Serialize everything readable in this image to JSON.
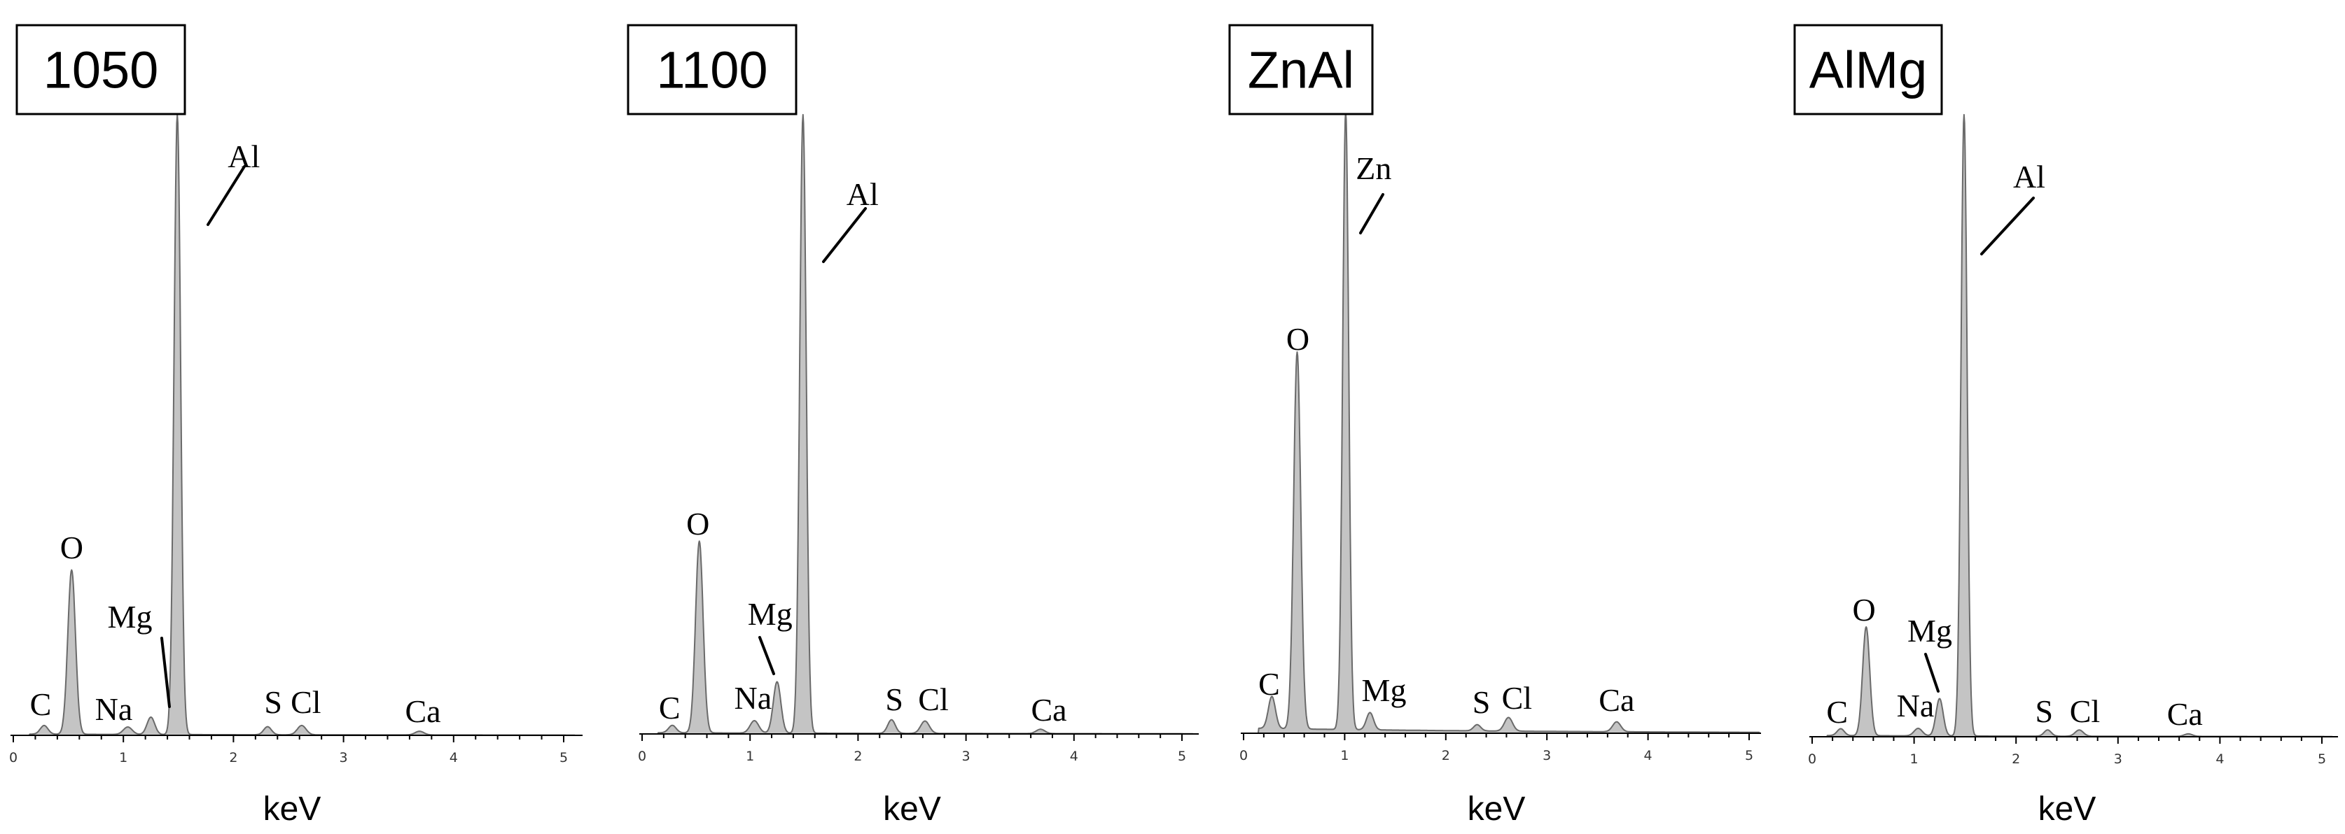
{
  "chart_data": [
    {
      "type": "area",
      "title": "1050",
      "xlabel": "keV",
      "ylabel": "",
      "xlim": [
        0,
        5.1
      ],
      "x_ticks": [
        "0",
        "1",
        "2",
        "3",
        "4",
        "5"
      ],
      "fill_color": "#c4c4c4",
      "line_color": "#6a6a6a",
      "peaks": [
        {
          "label": "C",
          "energy": 0.28,
          "height": 0.014
        },
        {
          "label": "O",
          "energy": 0.53,
          "height": 0.265
        },
        {
          "label": "Na",
          "energy": 1.04,
          "height": 0.012
        },
        {
          "label": "Mg",
          "energy": 1.25,
          "height": 0.028
        },
        {
          "label": "Al",
          "energy": 1.49,
          "height": 1.0
        },
        {
          "label": "S",
          "energy": 2.31,
          "height": 0.013
        },
        {
          "label": "Cl",
          "energy": 2.62,
          "height": 0.015
        },
        {
          "label": "Ca",
          "energy": 3.69,
          "height": 0.006
        }
      ]
    },
    {
      "type": "area",
      "title": "1100",
      "xlabel": "keV",
      "ylabel": "",
      "xlim": [
        0,
        5.1
      ],
      "x_ticks": [
        "0",
        "1",
        "2",
        "3",
        "4",
        "5"
      ],
      "fill_color": "#c4c4c4",
      "line_color": "#6a6a6a",
      "peaks": [
        {
          "label": "C",
          "energy": 0.28,
          "height": 0.012
        },
        {
          "label": "O",
          "energy": 0.53,
          "height": 0.31
        },
        {
          "label": "Na",
          "energy": 1.04,
          "height": 0.02
        },
        {
          "label": "Mg",
          "energy": 1.25,
          "height": 0.083
        },
        {
          "label": "Al",
          "energy": 1.49,
          "height": 1.0
        },
        {
          "label": "S",
          "energy": 2.31,
          "height": 0.022
        },
        {
          "label": "Cl",
          "energy": 2.62,
          "height": 0.02
        },
        {
          "label": "Ca",
          "energy": 3.69,
          "height": 0.007
        }
      ]
    },
    {
      "type": "area",
      "title": "ZnAl",
      "xlabel": "keV",
      "ylabel": "",
      "xlim": [
        0,
        5.1
      ],
      "x_ticks": [
        "0",
        "1",
        "2",
        "3",
        "4",
        "5"
      ],
      "fill_color": "#c4c4c4",
      "line_color": "#6a6a6a",
      "peaks": [
        {
          "label": "C",
          "energy": 0.28,
          "height": 0.052
        },
        {
          "label": "O",
          "energy": 0.53,
          "height": 0.61
        },
        {
          "label": "Zn",
          "energy": 1.01,
          "height": 1.0
        },
        {
          "label": "Mg",
          "energy": 1.25,
          "height": 0.028
        },
        {
          "label": "S",
          "energy": 2.31,
          "height": 0.01
        },
        {
          "label": "Cl",
          "energy": 2.62,
          "height": 0.022
        },
        {
          "label": "Ca",
          "energy": 3.69,
          "height": 0.016
        }
      ]
    },
    {
      "type": "area",
      "title": "AlMg",
      "xlabel": "keV",
      "ylabel": "",
      "xlim": [
        0,
        5.1
      ],
      "x_ticks": [
        "0",
        "1",
        "2",
        "3",
        "4",
        "5"
      ],
      "fill_color": "#c4c4c4",
      "line_color": "#6a6a6a",
      "peaks": [
        {
          "label": "C",
          "energy": 0.28,
          "height": 0.011
        },
        {
          "label": "O",
          "energy": 0.53,
          "height": 0.175
        },
        {
          "label": "Na",
          "energy": 1.04,
          "height": 0.012
        },
        {
          "label": "Mg",
          "energy": 1.25,
          "height": 0.06
        },
        {
          "label": "Al",
          "energy": 1.49,
          "height": 1.0
        },
        {
          "label": "S",
          "energy": 2.31,
          "height": 0.01
        },
        {
          "label": "Cl",
          "energy": 2.62,
          "height": 0.01
        },
        {
          "label": "Ca",
          "energy": 3.69,
          "height": 0.004
        }
      ]
    }
  ]
}
